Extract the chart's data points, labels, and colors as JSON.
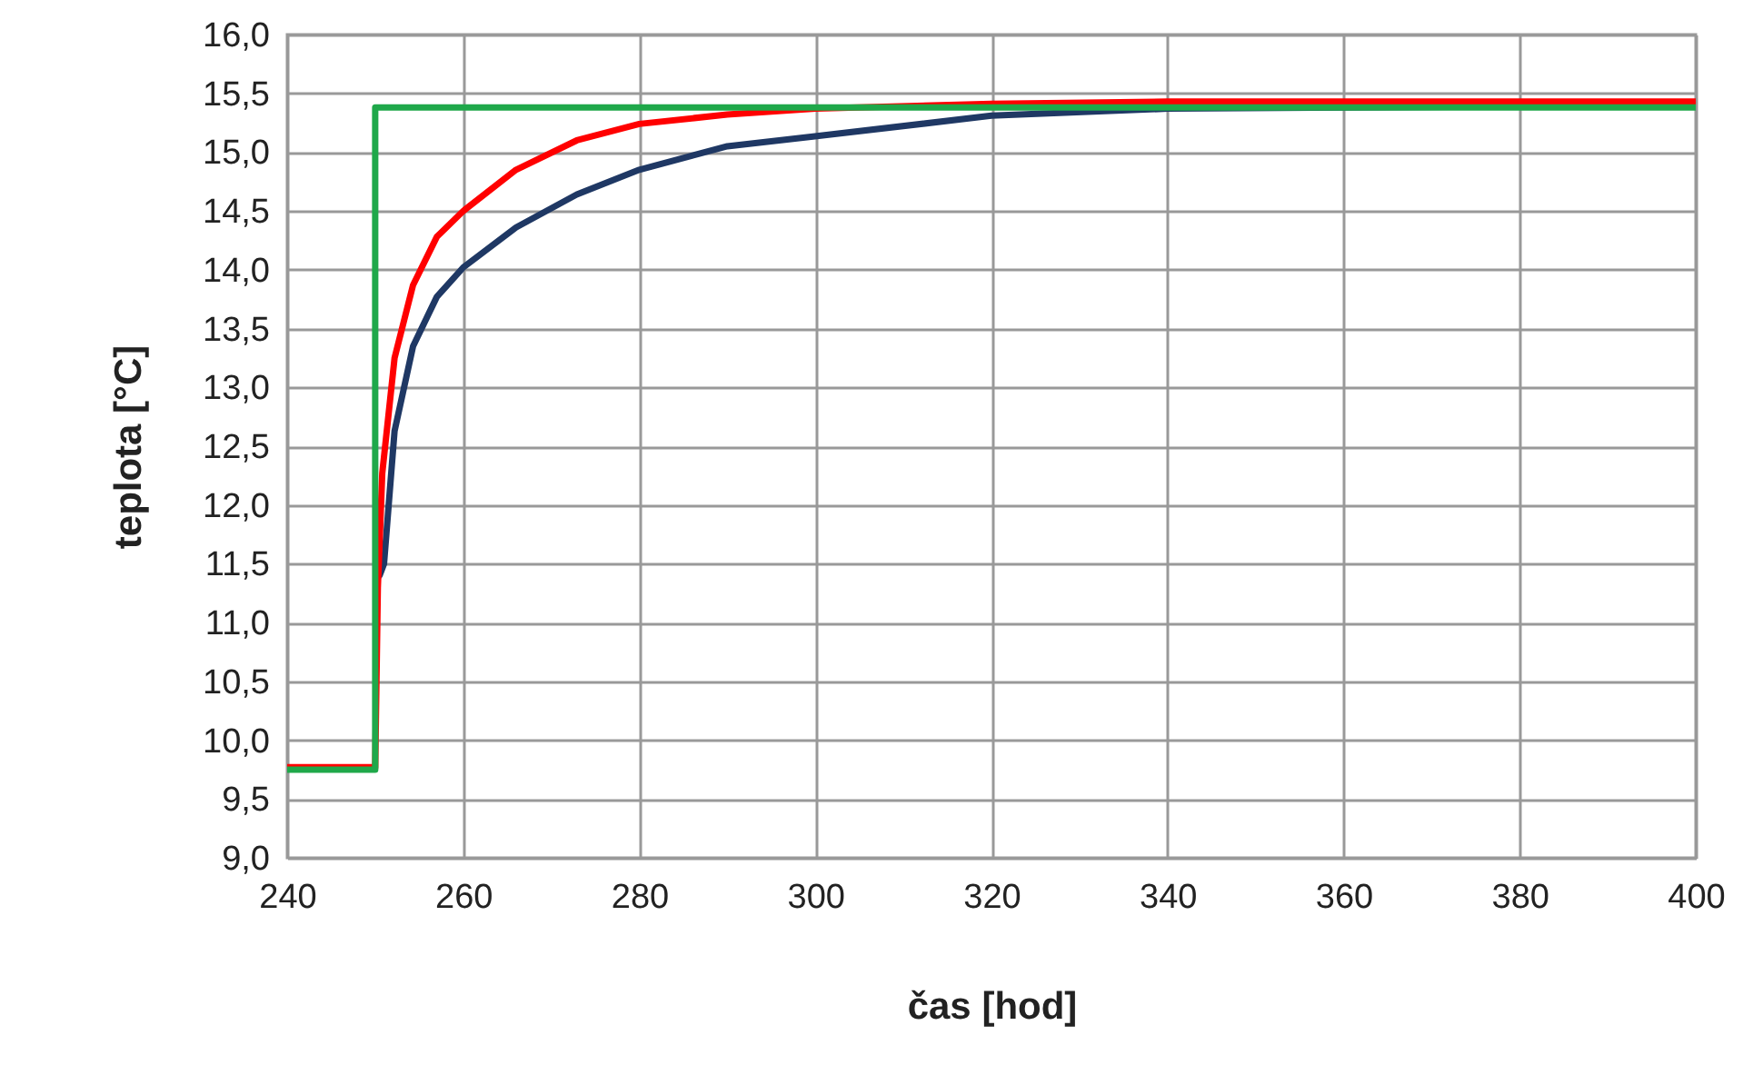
{
  "chart_data": {
    "type": "line",
    "xlabel": "čas [hod]",
    "ylabel": "teplota [°C]",
    "xlim": [
      240,
      400
    ],
    "xticks": [
      240,
      260,
      280,
      300,
      320,
      340,
      360,
      380,
      400
    ],
    "ylim": [
      9,
      16
    ],
    "yticks": [
      {
        "value": 9,
        "label": "9,0"
      },
      {
        "value": 9.5,
        "label": "9,5"
      },
      {
        "value": 10,
        "label": "10,0"
      },
      {
        "value": 10.5,
        "label": "10,5"
      },
      {
        "value": 11,
        "label": "11,0"
      },
      {
        "value": 11.5,
        "label": "11,5"
      },
      {
        "value": 12,
        "label": "12,0"
      },
      {
        "value": 12.5,
        "label": "12,5"
      },
      {
        "value": 13,
        "label": "13,0"
      },
      {
        "value": 13.5,
        "label": "13,5"
      },
      {
        "value": 14,
        "label": "14,0"
      },
      {
        "value": 14.5,
        "label": "14,5"
      },
      {
        "value": 15,
        "label": "15,0"
      },
      {
        "value": 15.5,
        "label": "15,5"
      },
      {
        "value": 16,
        "label": "16,0"
      }
    ],
    "grid": true,
    "marker": "none",
    "line_style": "solid",
    "series": [
      {
        "color": "#1f3864",
        "x": [
          250.5,
          251,
          252.2,
          254.3,
          257,
          260,
          266,
          272.9,
          280,
          290,
          299.5,
          320,
          340,
          400
        ],
        "values": [
          11.4,
          11.5,
          12.63,
          13.35,
          13.77,
          14.02,
          14.36,
          14.64,
          14.85,
          15.05,
          15.13,
          15.31,
          15.37,
          15.4
        ]
      },
      {
        "color": "#ff0000",
        "x": [
          240,
          250,
          250.3,
          250.8,
          252.2,
          254.3,
          257,
          260,
          266,
          272.9,
          280,
          290,
          300,
          320,
          340,
          370,
          400
        ],
        "values": [
          9.77,
          9.77,
          11.3,
          12.27,
          13.25,
          13.87,
          14.28,
          14.5,
          14.85,
          15.1,
          15.24,
          15.32,
          15.37,
          15.41,
          15.43,
          15.43,
          15.43
        ]
      },
      {
        "color": "#1fa84a",
        "x": [
          240,
          250,
          250,
          400
        ],
        "values": [
          9.75,
          9.75,
          15.38,
          15.38
        ]
      }
    ]
  }
}
